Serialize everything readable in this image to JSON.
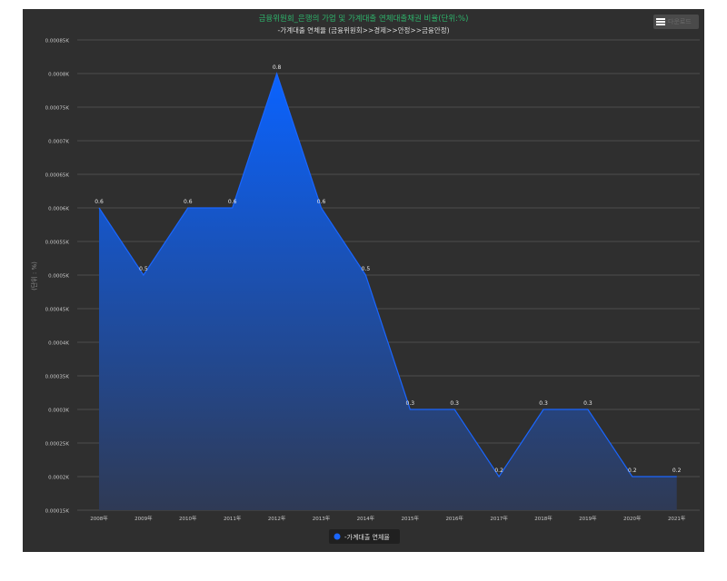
{
  "chart_data": {
    "type": "area",
    "title": "금융위원회_은행의 가업 및 가계대출 연체대출채권 비율(단위:%)",
    "subtitle": "-가계대출 연체율 (금융위원회>>경제>>안정>>금융안정)",
    "ylabel": "(단위 : %)",
    "xlabel": "",
    "categories": [
      "2008年",
      "2009年",
      "2010年",
      "2011年",
      "2012年",
      "2013年",
      "2014年",
      "2015年",
      "2016年",
      "2017年",
      "2018年",
      "2019年",
      "2020年",
      "2021年"
    ],
    "series": [
      {
        "name": "-가계대출 연체율",
        "values": [
          0.6,
          0.5,
          0.6,
          0.6,
          0.8,
          0.6,
          0.5,
          0.3,
          0.3,
          0.2,
          0.3,
          0.3,
          0.2,
          0.2
        ],
        "data_labels": [
          "0.6",
          "0.5",
          "0.6",
          "0.6",
          "0.8",
          "0.6",
          "0.5",
          "0.3",
          "0.3",
          "0.2",
          "0.3",
          "0.3",
          "0.2",
          "0.2"
        ]
      }
    ],
    "yticks": [
      0.15,
      0.2,
      0.25,
      0.3,
      0.35,
      0.4,
      0.45,
      0.5,
      0.55,
      0.6,
      0.65,
      0.7,
      0.75,
      0.8,
      0.85
    ],
    "ytick_labels": [
      "0.00015K",
      "0.0002K",
      "0.00025K",
      "0.0003K",
      "0.00035K",
      "0.0004K",
      "0.00045K",
      "0.0005K",
      "0.00055K",
      "0.0006K",
      "0.00065K",
      "0.0007K",
      "0.00075K",
      "0.0008K",
      "0.00085K"
    ],
    "ylim": [
      0.15,
      0.85
    ],
    "grid": true,
    "legend_position": "bottom"
  },
  "menu": {
    "label": "다운로드"
  },
  "colors": {
    "panel": "#2f2f2f",
    "title": "#2fb36b",
    "subtitle": "#dddddd",
    "axis_text": "#c8c8c8",
    "grid": "#5a5a5a",
    "series": "#1a66ff",
    "area_top": "#0a63ff",
    "area_bottom": "#2f3a55",
    "legend_bg": "#202020"
  }
}
